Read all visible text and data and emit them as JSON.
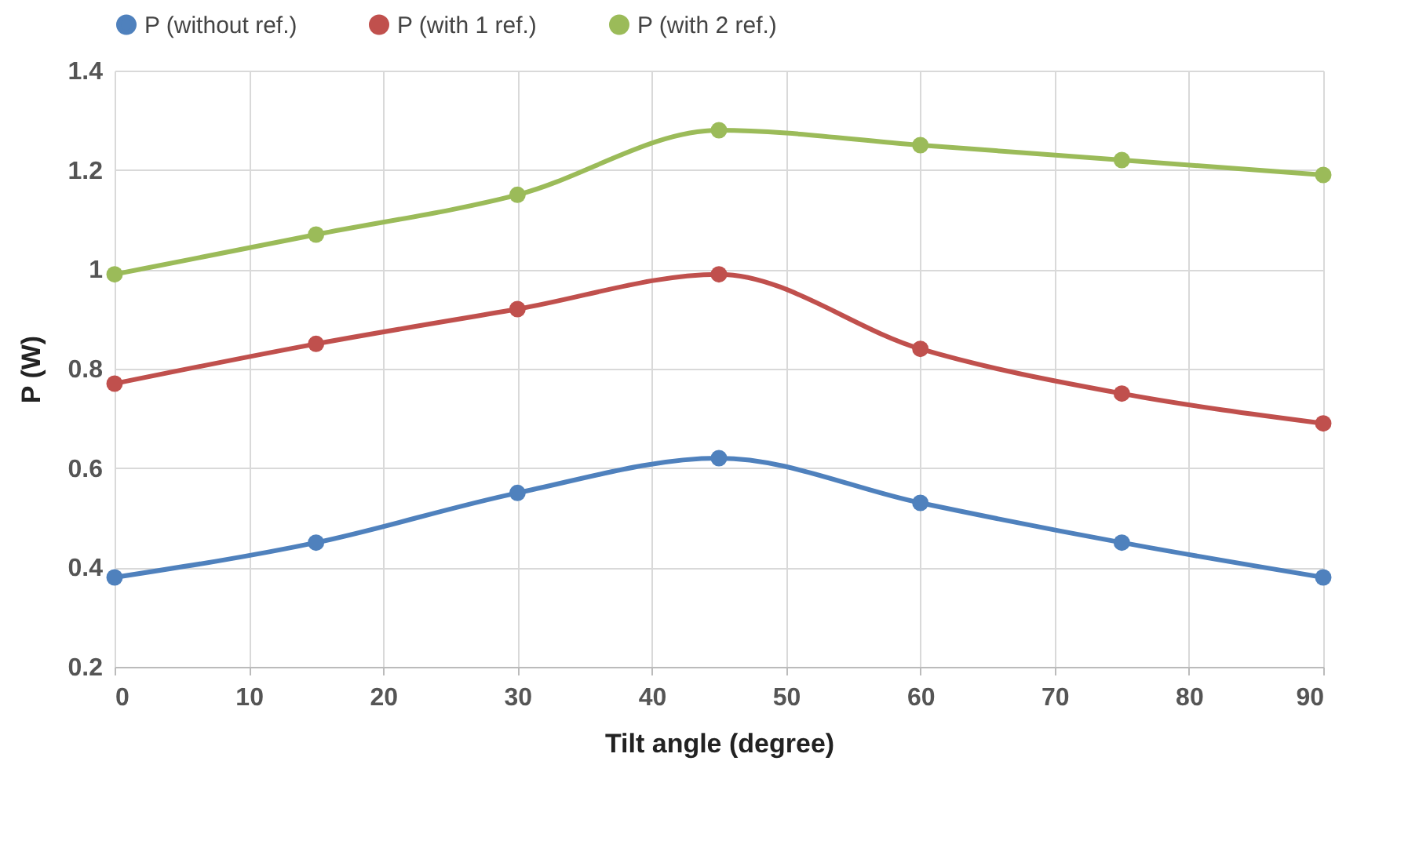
{
  "chart_data": {
    "type": "line",
    "xlabel": "Tilt angle (degree)",
    "ylabel": "P (W)",
    "x": [
      0,
      15,
      30,
      45,
      60,
      75,
      90
    ],
    "series": [
      {
        "name": "P (without ref.)",
        "color": "#4f81bd",
        "values": [
          0.38,
          0.45,
          0.55,
          0.62,
          0.53,
          0.45,
          0.38
        ]
      },
      {
        "name": "P (with 1 ref.)",
        "color": "#c0504d",
        "values": [
          0.77,
          0.85,
          0.92,
          0.99,
          0.84,
          0.75,
          0.69
        ]
      },
      {
        "name": "P (with 2 ref.)",
        "color": "#9bbb59",
        "values": [
          0.99,
          1.07,
          1.15,
          1.28,
          1.25,
          1.22,
          1.19
        ]
      }
    ],
    "xlim": [
      0,
      90
    ],
    "xticks": [
      0,
      10,
      20,
      30,
      40,
      50,
      60,
      70,
      80,
      90
    ],
    "ylim": [
      0.2,
      1.4
    ],
    "yticks": [
      0.2,
      0.4,
      0.6,
      0.8,
      1,
      1.2,
      1.4
    ],
    "grid": true,
    "legend": "top",
    "marker": "circle",
    "line_style": "solid"
  }
}
